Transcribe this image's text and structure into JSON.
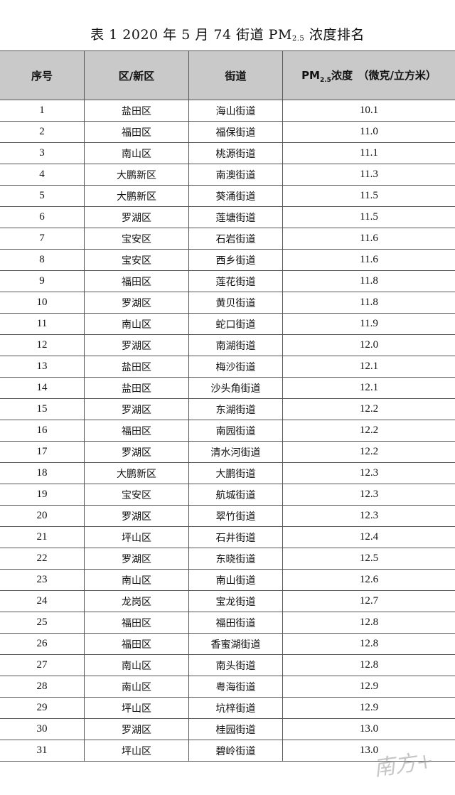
{
  "title": {
    "prefix": "表 1  2020 年 5 月 74 街道 PM",
    "sub": "2.5",
    "suffix": "浓度排名"
  },
  "columns": {
    "rank": "序号",
    "district": "区/新区",
    "street": "街道",
    "pm_prefix": "PM",
    "pm_sub": "2.5",
    "pm_suffix": "浓度　（微克/立方米）"
  },
  "rows": [
    [
      "1",
      "盐田区",
      "海山街道",
      "10.1"
    ],
    [
      "2",
      "福田区",
      "福保街道",
      "11.0"
    ],
    [
      "3",
      "南山区",
      "桃源街道",
      "11.1"
    ],
    [
      "4",
      "大鹏新区",
      "南澳街道",
      "11.3"
    ],
    [
      "5",
      "大鹏新区",
      "葵涌街道",
      "11.5"
    ],
    [
      "6",
      "罗湖区",
      "莲塘街道",
      "11.5"
    ],
    [
      "7",
      "宝安区",
      "石岩街道",
      "11.6"
    ],
    [
      "8",
      "宝安区",
      "西乡街道",
      "11.6"
    ],
    [
      "9",
      "福田区",
      "莲花街道",
      "11.8"
    ],
    [
      "10",
      "罗湖区",
      "黄贝街道",
      "11.8"
    ],
    [
      "11",
      "南山区",
      "蛇口街道",
      "11.9"
    ],
    [
      "12",
      "罗湖区",
      "南湖街道",
      "12.0"
    ],
    [
      "13",
      "盐田区",
      "梅沙街道",
      "12.1"
    ],
    [
      "14",
      "盐田区",
      "沙头角街道",
      "12.1"
    ],
    [
      "15",
      "罗湖区",
      "东湖街道",
      "12.2"
    ],
    [
      "16",
      "福田区",
      "南园街道",
      "12.2"
    ],
    [
      "17",
      "罗湖区",
      "清水河街道",
      "12.2"
    ],
    [
      "18",
      "大鹏新区",
      "大鹏街道",
      "12.3"
    ],
    [
      "19",
      "宝安区",
      "航城街道",
      "12.3"
    ],
    [
      "20",
      "罗湖区",
      "翠竹街道",
      "12.3"
    ],
    [
      "21",
      "坪山区",
      "石井街道",
      "12.4"
    ],
    [
      "22",
      "罗湖区",
      "东晓街道",
      "12.5"
    ],
    [
      "23",
      "南山区",
      "南山街道",
      "12.6"
    ],
    [
      "24",
      "龙岗区",
      "宝龙街道",
      "12.7"
    ],
    [
      "25",
      "福田区",
      "福田街道",
      "12.8"
    ],
    [
      "26",
      "福田区",
      "香蜜湖街道",
      "12.8"
    ],
    [
      "27",
      "南山区",
      "南头街道",
      "12.8"
    ],
    [
      "28",
      "南山区",
      "粤海街道",
      "12.9"
    ],
    [
      "29",
      "坪山区",
      "坑梓街道",
      "12.9"
    ],
    [
      "30",
      "罗湖区",
      "桂园街道",
      "13.0"
    ],
    [
      "31",
      "坪山区",
      "碧岭街道",
      "13.0"
    ]
  ],
  "watermark": "南方+",
  "colors": {
    "header_bg": "#c9c9c9"
  }
}
